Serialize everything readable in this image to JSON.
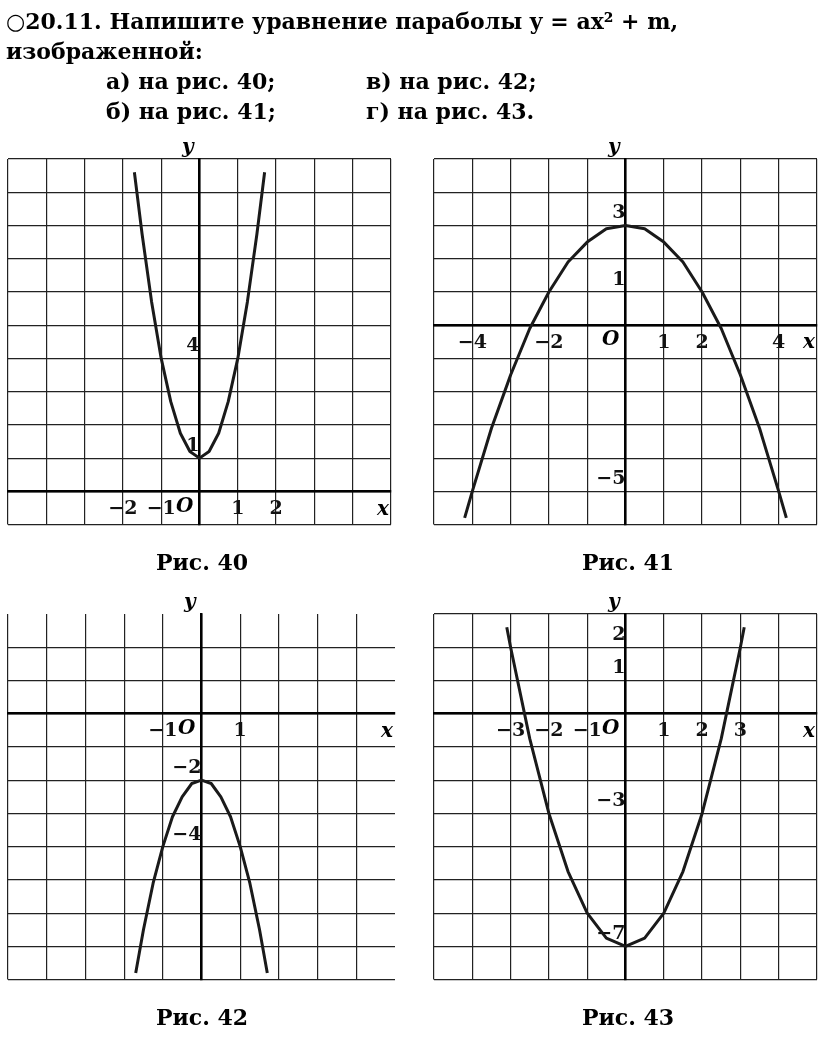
{
  "chart_data": [
    {
      "type": "other",
      "title": "○20.11. Напишите уравнение параболы y = ax² + m, изображенной:",
      "annotations": [
        "а) на рис. 40;",
        "в) на рис. 42;",
        "б) на рис. 41;",
        "г) на рис. 43."
      ]
    },
    {
      "type": "line",
      "title": "Рис. 40",
      "xlabel": "x",
      "ylabel": "y",
      "annotations": [
        "O"
      ],
      "grid": true,
      "legend": false,
      "xlim": [
        -5,
        5
      ],
      "ylim": [
        -1,
        10
      ],
      "xticks": [
        {
          "value": -5,
          "label": null
        },
        {
          "value": -4,
          "label": null
        },
        {
          "value": -3,
          "label": null
        },
        -2,
        -1,
        {
          "value": 0,
          "label": null
        },
        1,
        2,
        {
          "value": 3,
          "label": null
        },
        {
          "value": 4,
          "label": null
        },
        {
          "value": 5,
          "label": null
        }
      ],
      "yticks": [
        {
          "value": -1,
          "label": null
        },
        {
          "value": 0,
          "label": null
        },
        1,
        {
          "value": 2,
          "label": null
        },
        {
          "value": 3,
          "label": null
        },
        4,
        {
          "value": 5,
          "label": null
        },
        {
          "value": 6,
          "label": null
        },
        {
          "value": 7,
          "label": null
        },
        {
          "value": 8,
          "label": null
        },
        {
          "value": 9,
          "label": null
        },
        {
          "value": 10,
          "label": null
        }
      ],
      "series": [
        {
          "color": "#1a1a1a",
          "x": [
            -1.7,
            -1.5,
            -1.25,
            -1,
            -0.75,
            -0.5,
            -0.25,
            0,
            0.25,
            0.5,
            0.75,
            1,
            1.25,
            1.5,
            1.7
          ],
          "values": [
            9.6,
            7.75,
            5.7,
            4,
            2.7,
            1.75,
            1.2,
            1,
            1.2,
            1.75,
            2.7,
            4,
            5.7,
            7.75,
            9.6
          ]
        }
      ]
    },
    {
      "type": "line",
      "title": "Рис. 41",
      "xlabel": "x",
      "ylabel": "y",
      "annotations": [
        "O"
      ],
      "grid": true,
      "legend": false,
      "xlim": [
        -5,
        5
      ],
      "ylim": [
        -6,
        5
      ],
      "xticks": [
        {
          "value": -5,
          "label": null
        },
        -4,
        {
          "value": -3,
          "label": null
        },
        -2,
        {
          "value": -1,
          "label": null
        },
        {
          "value": 0,
          "label": null
        },
        1,
        2,
        {
          "value": 3,
          "label": null
        },
        4,
        {
          "value": 5,
          "label": null
        }
      ],
      "yticks": [
        {
          "value": -6,
          "label": null
        },
        -5,
        {
          "value": -4,
          "label": null
        },
        {
          "value": -3,
          "label": null
        },
        {
          "value": -2,
          "label": null
        },
        {
          "value": -1,
          "label": null
        },
        {
          "value": 0,
          "label": null
        },
        1,
        {
          "value": 2,
          "label": null
        },
        3,
        {
          "value": 4,
          "label": null
        },
        {
          "value": 5,
          "label": null
        }
      ],
      "series": [
        {
          "color": "#1a1a1a",
          "x": [
            -4.2,
            -4,
            -3.5,
            -3,
            -2.5,
            -2,
            -1.5,
            -1,
            -0.5,
            0,
            0.5,
            1,
            1.5,
            2,
            2.5,
            3,
            3.5,
            4,
            4.2
          ],
          "values": [
            -5.8,
            -5,
            -3.1,
            -1.5,
            -0.1,
            1,
            1.9,
            2.5,
            2.9,
            3,
            2.9,
            2.5,
            1.9,
            1,
            -0.1,
            -1.5,
            -3.1,
            -5,
            -5.8
          ]
        }
      ]
    },
    {
      "type": "line",
      "title": "Рис. 42",
      "xlabel": "x",
      "ylabel": "y",
      "annotations": [
        "O"
      ],
      "grid": true,
      "legend": false,
      "xlim": [
        -5,
        5
      ],
      "ylim": [
        -8,
        3
      ],
      "xticks": [
        {
          "value": -5,
          "label": null
        },
        {
          "value": -4,
          "label": null
        },
        {
          "value": -3,
          "label": null
        },
        {
          "value": -2,
          "label": null
        },
        -1,
        {
          "value": 0,
          "label": null
        },
        1,
        {
          "value": 2,
          "label": null
        },
        {
          "value": 3,
          "label": null
        },
        {
          "value": 4,
          "label": null
        }
      ],
      "yticks": [
        {
          "value": -8,
          "label": null
        },
        {
          "value": -7,
          "label": null
        },
        {
          "value": -6,
          "label": null
        },
        {
          "value": -5,
          "label": null
        },
        -4,
        {
          "value": -3,
          "label": null
        },
        -2,
        {
          "value": -1,
          "label": null
        },
        {
          "value": 0,
          "label": null
        },
        {
          "value": 1,
          "label": null
        },
        {
          "value": 2,
          "label": null
        }
      ],
      "series": [
        {
          "color": "#1a1a1a",
          "x": [
            -1.7,
            -1.5,
            -1.25,
            -1,
            -0.75,
            -0.5,
            -0.25,
            0,
            0.25,
            0.5,
            0.75,
            1,
            1.25,
            1.5,
            1.7
          ],
          "values": [
            -7.8,
            -6.5,
            -5.1,
            -4,
            -3.1,
            -2.5,
            -2.1,
            -2,
            -2.1,
            -2.5,
            -3.1,
            -4,
            -5.1,
            -6.5,
            -7.8
          ]
        }
      ]
    },
    {
      "type": "line",
      "title": "Рис. 43",
      "xlabel": "x",
      "ylabel": "y",
      "annotations": [
        "O"
      ],
      "grid": true,
      "legend": false,
      "xlim": [
        -5,
        5
      ],
      "ylim": [
        -8,
        3
      ],
      "xticks": [
        {
          "value": -5,
          "label": null
        },
        {
          "value": -4,
          "label": null
        },
        -3,
        -2,
        -1,
        {
          "value": 0,
          "label": null
        },
        1,
        2,
        3,
        {
          "value": 4,
          "label": null
        },
        {
          "value": 5,
          "label": null
        }
      ],
      "yticks": [
        {
          "value": -8,
          "label": null
        },
        -7,
        {
          "value": -6,
          "label": null
        },
        {
          "value": -5,
          "label": null
        },
        {
          "value": -4,
          "label": null
        },
        -3,
        {
          "value": -2,
          "label": null
        },
        {
          "value": -1,
          "label": null
        },
        {
          "value": 0,
          "label": null
        },
        1,
        2,
        {
          "value": 3,
          "label": null
        }
      ],
      "series": [
        {
          "color": "#1a1a1a",
          "x": [
            -3.1,
            -3,
            -2.5,
            -2,
            -1.5,
            -1,
            -0.5,
            0,
            0.5,
            1,
            1.5,
            2,
            2.5,
            3,
            3.1
          ],
          "values": [
            2.6,
            2,
            -0.75,
            -3,
            -4.75,
            -6,
            -6.75,
            -7,
            -6.75,
            -6,
            -4.75,
            -3,
            -0.75,
            2,
            2.6
          ]
        }
      ]
    }
  ]
}
